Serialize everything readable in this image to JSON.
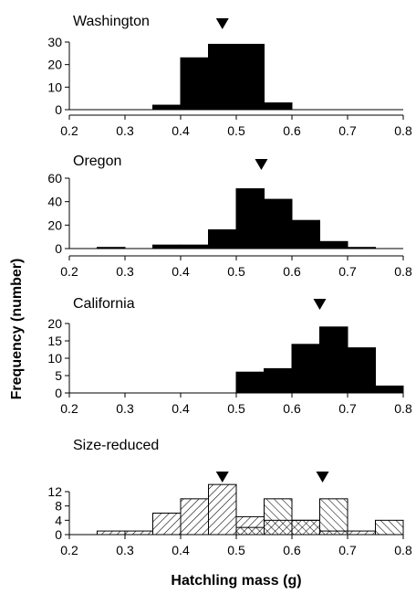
{
  "chart_data": {
    "type": "bar",
    "xlabel": "Hatchling mass (g)",
    "ylabel": "Frequency (number)",
    "xlim": [
      0.2,
      0.8
    ],
    "x_ticks": [
      0.2,
      0.3,
      0.4,
      0.5,
      0.6,
      0.7,
      0.8
    ],
    "x_tick_labels": [
      "0.2",
      "0.3",
      "0.4",
      "0.5",
      "0.6",
      "0.7",
      "0.8"
    ],
    "bin_width": 0.05,
    "grid": false,
    "panels": [
      {
        "title": "Washington",
        "ylim": [
          0,
          30
        ],
        "y_ticks": [
          0,
          10,
          20,
          30
        ],
        "y_tick_labels": [
          "0",
          "10",
          "20",
          "30"
        ],
        "mean_markers": [
          0.475
        ],
        "series": [
          {
            "fill": "solid",
            "bins": [
              {
                "x": 0.35,
                "count": 2
              },
              {
                "x": 0.4,
                "count": 23
              },
              {
                "x": 0.45,
                "count": 29
              },
              {
                "x": 0.5,
                "count": 29
              },
              {
                "x": 0.55,
                "count": 3
              }
            ]
          }
        ]
      },
      {
        "title": "Oregon",
        "ylim": [
          0,
          60
        ],
        "y_ticks": [
          0,
          20,
          40,
          60
        ],
        "y_tick_labels": [
          "0",
          "20",
          "40",
          "60"
        ],
        "mean_markers": [
          0.545
        ],
        "series": [
          {
            "fill": "solid",
            "bins": [
              {
                "x": 0.25,
                "count": 1
              },
              {
                "x": 0.35,
                "count": 3
              },
              {
                "x": 0.4,
                "count": 3
              },
              {
                "x": 0.45,
                "count": 16
              },
              {
                "x": 0.5,
                "count": 51
              },
              {
                "x": 0.55,
                "count": 42
              },
              {
                "x": 0.6,
                "count": 24
              },
              {
                "x": 0.65,
                "count": 6
              },
              {
                "x": 0.7,
                "count": 1
              }
            ]
          }
        ]
      },
      {
        "title": "California",
        "ylim": [
          0,
          20
        ],
        "y_ticks": [
          0,
          5,
          10,
          15,
          20
        ],
        "y_tick_labels": [
          "0",
          "5",
          "10",
          "15",
          "20"
        ],
        "mean_markers": [
          0.65
        ],
        "series": [
          {
            "fill": "solid",
            "bins": [
              {
                "x": 0.5,
                "count": 6
              },
              {
                "x": 0.55,
                "count": 7
              },
              {
                "x": 0.6,
                "count": 14
              },
              {
                "x": 0.65,
                "count": 19
              },
              {
                "x": 0.7,
                "count": 13
              },
              {
                "x": 0.75,
                "count": 2
              }
            ]
          }
        ]
      },
      {
        "title": "Size-reduced",
        "ylim": [
          0,
          14
        ],
        "y_ticks": [
          0,
          4,
          8,
          12
        ],
        "y_tick_labels": [
          "0",
          "4",
          "8",
          "12"
        ],
        "mean_markers": [
          0.475,
          0.655
        ],
        "series": [
          {
            "fill": "hatch-down",
            "bins": [
              {
                "x": 0.25,
                "count": 1
              },
              {
                "x": 0.3,
                "count": 1
              },
              {
                "x": 0.35,
                "count": 6
              },
              {
                "x": 0.4,
                "count": 10
              },
              {
                "x": 0.45,
                "count": 14
              },
              {
                "x": 0.5,
                "count": 5
              },
              {
                "x": 0.55,
                "count": 4
              },
              {
                "x": 0.6,
                "count": 4
              },
              {
                "x": 0.65,
                "count": 1
              },
              {
                "x": 0.7,
                "count": 1
              }
            ]
          },
          {
            "fill": "hatch-up",
            "bins": [
              {
                "x": 0.5,
                "count": 2
              },
              {
                "x": 0.55,
                "count": 10
              },
              {
                "x": 0.6,
                "count": 4
              },
              {
                "x": 0.65,
                "count": 10
              },
              {
                "x": 0.75,
                "count": 4
              }
            ]
          }
        ]
      }
    ]
  }
}
